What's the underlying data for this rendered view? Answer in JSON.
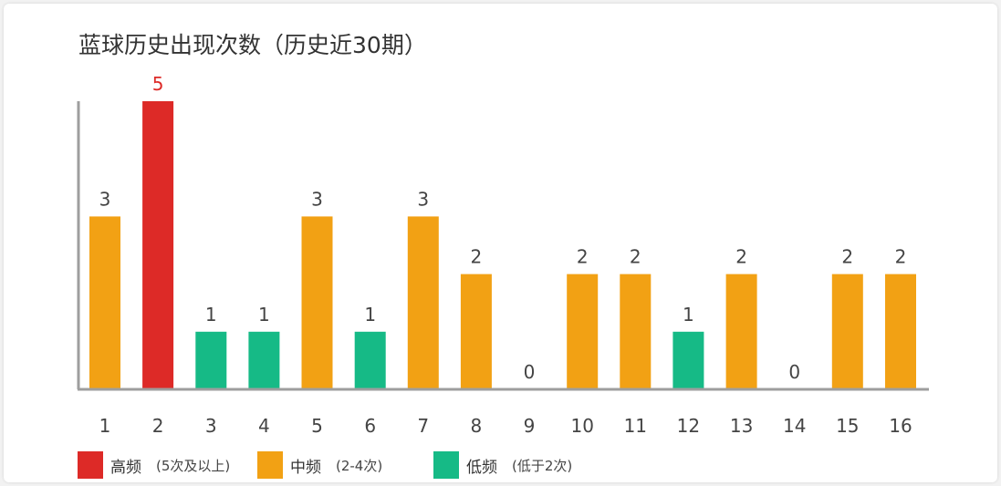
{
  "colors": {
    "high": "#dd2a27",
    "mid": "#f2a114",
    "low": "#16ba86",
    "axis": "#9e9e9e"
  },
  "chart_data": {
    "type": "bar",
    "title": "蓝球历史出现次数（历史近30期）",
    "categories": [
      "1",
      "2",
      "3",
      "4",
      "5",
      "6",
      "7",
      "8",
      "9",
      "10",
      "11",
      "12",
      "13",
      "14",
      "15",
      "16"
    ],
    "values": [
      3,
      5,
      1,
      1,
      3,
      1,
      3,
      2,
      0,
      2,
      2,
      1,
      2,
      0,
      2,
      2
    ],
    "ylim": [
      0,
      5
    ],
    "grid": false,
    "legend": {
      "placement": "bottom-left",
      "entries": [
        {
          "key": "high",
          "name": "高频",
          "note": "(5次及以上)"
        },
        {
          "key": "mid",
          "name": "中频",
          "note": "(2-4次)"
        },
        {
          "key": "low",
          "name": "低频",
          "note": "(低于2次)"
        }
      ]
    }
  }
}
